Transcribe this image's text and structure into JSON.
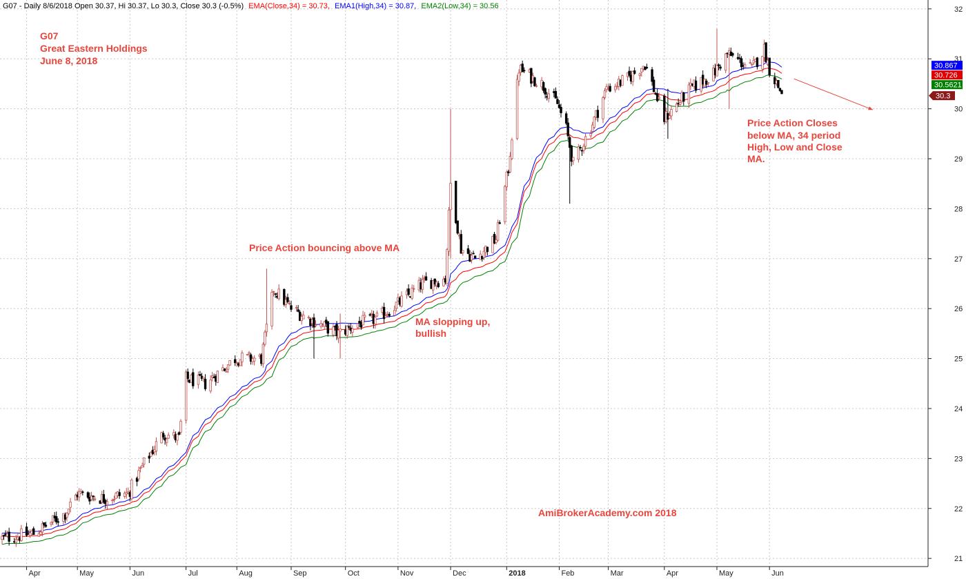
{
  "header": {
    "prefix": "G07 - Daily 8/6/2018 Open 30.37, Hi 30.37, Lo 30.3, Close 30.3 (-0.5%)",
    "ema_close": "EMA(Close,34) = 30.73,",
    "ema_high": "EMA1(High,34) = 30.87,",
    "ema_low": "EMA2(Low,34) = 30.56"
  },
  "annotations": {
    "symbol": "G07",
    "company": "Great Eastern Holdings",
    "date": "June 8, 2018",
    "bounce": "Price Action bouncing above MA",
    "slope_line1": "MA slopping up,",
    "slope_line2": "bullish",
    "closes_line1": "Price Action Closes",
    "closes_line2": "below MA, 34 period",
    "closes_line3": "High, Low and Close",
    "closes_line4": "MA.",
    "watermark": "AmiBrokerAcademy.com  2018"
  },
  "badges": {
    "ema_high": "30.867",
    "ema_close": "30.726",
    "ema_low": "30.5621",
    "last_close": "30.3"
  },
  "colors": {
    "up_candle": "#c0504d",
    "down_candle": "#000000",
    "ema_close": "#ff0000",
    "ema_high": "#0000ff",
    "ema_low": "#008000",
    "annotation": "#e8453c",
    "grid": "#c8c8c8",
    "badge_high": "#0000ff",
    "badge_close": "#e00000",
    "badge_low": "#008000",
    "badge_last": "#8b1a1a"
  },
  "chart_data": {
    "type": "candlestick",
    "title": "G07 - Daily 8/6/2018",
    "ylim": [
      20.85,
      32.15
    ],
    "y_ticks": [
      21,
      22,
      23,
      24,
      25,
      26,
      27,
      28,
      29,
      30,
      31,
      32
    ],
    "x_ticks": [
      "Apr",
      "May",
      "Jun",
      "Jul",
      "Aug",
      "Sep",
      "Oct",
      "Nov",
      "Dec",
      "2018",
      "Feb",
      "Mar",
      "Apr",
      "May",
      "Jun"
    ],
    "x_tick_dates": [
      "2017-04-03",
      "2017-05-02",
      "2017-06-01",
      "2017-07-03",
      "2017-08-01",
      "2017-09-01",
      "2017-10-02",
      "2017-11-01",
      "2017-12-01",
      "2018-01-02",
      "2018-02-01",
      "2018-03-01",
      "2018-04-02",
      "2018-05-02",
      "2018-06-01"
    ],
    "grid": true,
    "price_path": [
      [
        "2017-03-20",
        21.4
      ],
      [
        "2017-04-07",
        21.5
      ],
      [
        "2017-04-25",
        21.9
      ],
      [
        "2017-05-02",
        22.3
      ],
      [
        "2017-05-17",
        22.2
      ],
      [
        "2017-05-31",
        22.3
      ],
      [
        "2017-06-09",
        22.9
      ],
      [
        "2017-06-20",
        23.5
      ],
      [
        "2017-06-29",
        23.4
      ],
      [
        "2017-07-03",
        24.6
      ],
      [
        "2017-07-14",
        24.5
      ],
      [
        "2017-07-31",
        25.0
      ],
      [
        "2017-08-15",
        25.0
      ],
      [
        "2017-08-22",
        26.4
      ],
      [
        "2017-09-01",
        26.0
      ],
      [
        "2017-09-11",
        25.8
      ],
      [
        "2017-09-28",
        25.5
      ],
      [
        "2017-10-09",
        25.7
      ],
      [
        "2017-10-20",
        25.8
      ],
      [
        "2017-11-01",
        26.1
      ],
      [
        "2017-11-15",
        26.5
      ],
      [
        "2017-11-28",
        26.6
      ],
      [
        "2017-12-01",
        28.5
      ],
      [
        "2017-12-07",
        27.2
      ],
      [
        "2017-12-15",
        27.0
      ],
      [
        "2017-12-27",
        27.4
      ],
      [
        "2018-01-03",
        28.8
      ],
      [
        "2018-01-09",
        30.8
      ],
      [
        "2018-01-22",
        30.5
      ],
      [
        "2018-01-31",
        30.1
      ],
      [
        "2018-02-05",
        29.6
      ],
      [
        "2018-02-09",
        28.9
      ],
      [
        "2018-02-20",
        29.7
      ],
      [
        "2018-02-28",
        30.4
      ],
      [
        "2018-03-12",
        30.6
      ],
      [
        "2018-03-22",
        30.9
      ],
      [
        "2018-03-29",
        30.2
      ],
      [
        "2018-04-02",
        29.8
      ],
      [
        "2018-04-17",
        30.4
      ],
      [
        "2018-04-30",
        30.7
      ],
      [
        "2018-05-08",
        31.1
      ],
      [
        "2018-05-22",
        30.8
      ],
      [
        "2018-05-29",
        31.2
      ],
      [
        "2018-06-01",
        30.8
      ],
      [
        "2018-06-08",
        30.3
      ]
    ],
    "candle_spikes": [
      {
        "date": "2017-08-18",
        "high": 26.8,
        "low": 25.8
      },
      {
        "date": "2017-09-14",
        "high": 25.9,
        "low": 25.0
      },
      {
        "date": "2017-09-29",
        "high": 25.9,
        "low": 25.0
      },
      {
        "date": "2017-12-01",
        "high": 30.0,
        "low": 27.0
      },
      {
        "date": "2018-02-07",
        "high": 29.2,
        "low": 28.1
      },
      {
        "date": "2018-04-04",
        "high": 30.4,
        "low": 29.4
      },
      {
        "date": "2018-05-02",
        "high": 31.6,
        "low": 30.7
      },
      {
        "date": "2018-05-09",
        "high": 30.9,
        "low": 30.0
      }
    ],
    "ema_period": 34,
    "series": [
      {
        "name": "EMA(Close,34)",
        "last": 30.73
      },
      {
        "name": "EMA1(High,34)",
        "last": 30.87
      },
      {
        "name": "EMA2(Low,34)",
        "last": 30.56
      }
    ],
    "last_bar": {
      "date": "2018-06-08",
      "open": 30.37,
      "high": 30.37,
      "low": 30.3,
      "close": 30.3
    },
    "arrow": {
      "from_date": "2018-06-15",
      "from_value": 30.6,
      "to_date": "2018-07-30",
      "to_value": 29.98
    }
  }
}
